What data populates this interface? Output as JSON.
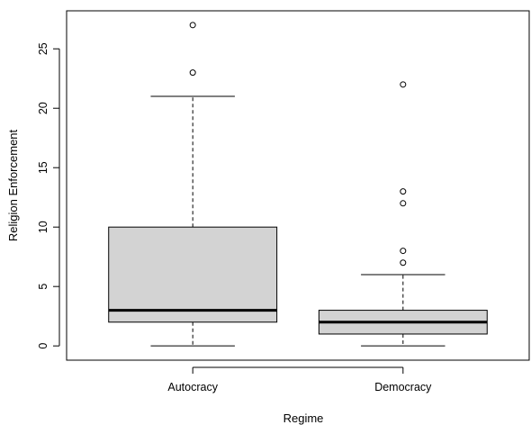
{
  "chart_data": {
    "type": "boxplot",
    "title": "",
    "xlabel": "Regime",
    "ylabel": "Religion Enforcement",
    "ylim": [
      -1.2,
      28.2
    ],
    "yticks": [
      0,
      5,
      10,
      15,
      20,
      25
    ],
    "categories": [
      "Autocracy",
      "Democracy"
    ],
    "boxes": [
      {
        "category": "Autocracy",
        "whisker_low": 0,
        "q1": 2,
        "median": 3,
        "q3": 10,
        "whisker_high": 21,
        "outliers": [
          23,
          27
        ]
      },
      {
        "category": "Democracy",
        "whisker_low": 0,
        "q1": 1,
        "median": 2,
        "q3": 3,
        "whisker_high": 6,
        "outliers": [
          7,
          8,
          12,
          13,
          22
        ]
      }
    ],
    "box_fill": "#d3d3d3",
    "grid": false
  }
}
